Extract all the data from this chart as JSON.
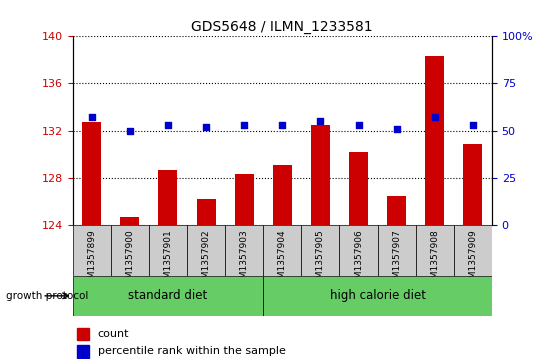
{
  "title": "GDS5648 / ILMN_1233581",
  "samples": [
    "GSM1357899",
    "GSM1357900",
    "GSM1357901",
    "GSM1357902",
    "GSM1357903",
    "GSM1357904",
    "GSM1357905",
    "GSM1357906",
    "GSM1357907",
    "GSM1357908",
    "GSM1357909"
  ],
  "counts": [
    132.7,
    124.7,
    128.7,
    126.2,
    128.3,
    129.1,
    132.5,
    130.2,
    126.5,
    138.3,
    130.9
  ],
  "percentile_ranks": [
    57,
    50,
    53,
    52,
    53,
    53,
    55,
    53,
    51,
    57,
    53
  ],
  "ylim_left": [
    124,
    140
  ],
  "ylim_right": [
    0,
    100
  ],
  "yticks_left": [
    124,
    128,
    132,
    136,
    140
  ],
  "yticks_right": [
    0,
    25,
    50,
    75,
    100
  ],
  "yticklabels_right": [
    "0",
    "25",
    "50",
    "75",
    "100%"
  ],
  "bar_color": "#cc0000",
  "dot_color": "#0000cc",
  "grid_color": "#000000",
  "standard_diet_indices": [
    0,
    1,
    2,
    3,
    4
  ],
  "high_calorie_indices": [
    5,
    6,
    7,
    8,
    9,
    10
  ],
  "standard_diet_label": "standard diet",
  "high_calorie_label": "high calorie diet",
  "group_label": "growth protocol",
  "legend_count": "count",
  "legend_percentile": "percentile rank within the sample",
  "tick_color_left": "#cc0000",
  "tick_color_right": "#0000cc",
  "bar_width": 0.5,
  "sample_box_color": "#cccccc",
  "group_box_color": "#66cc66"
}
